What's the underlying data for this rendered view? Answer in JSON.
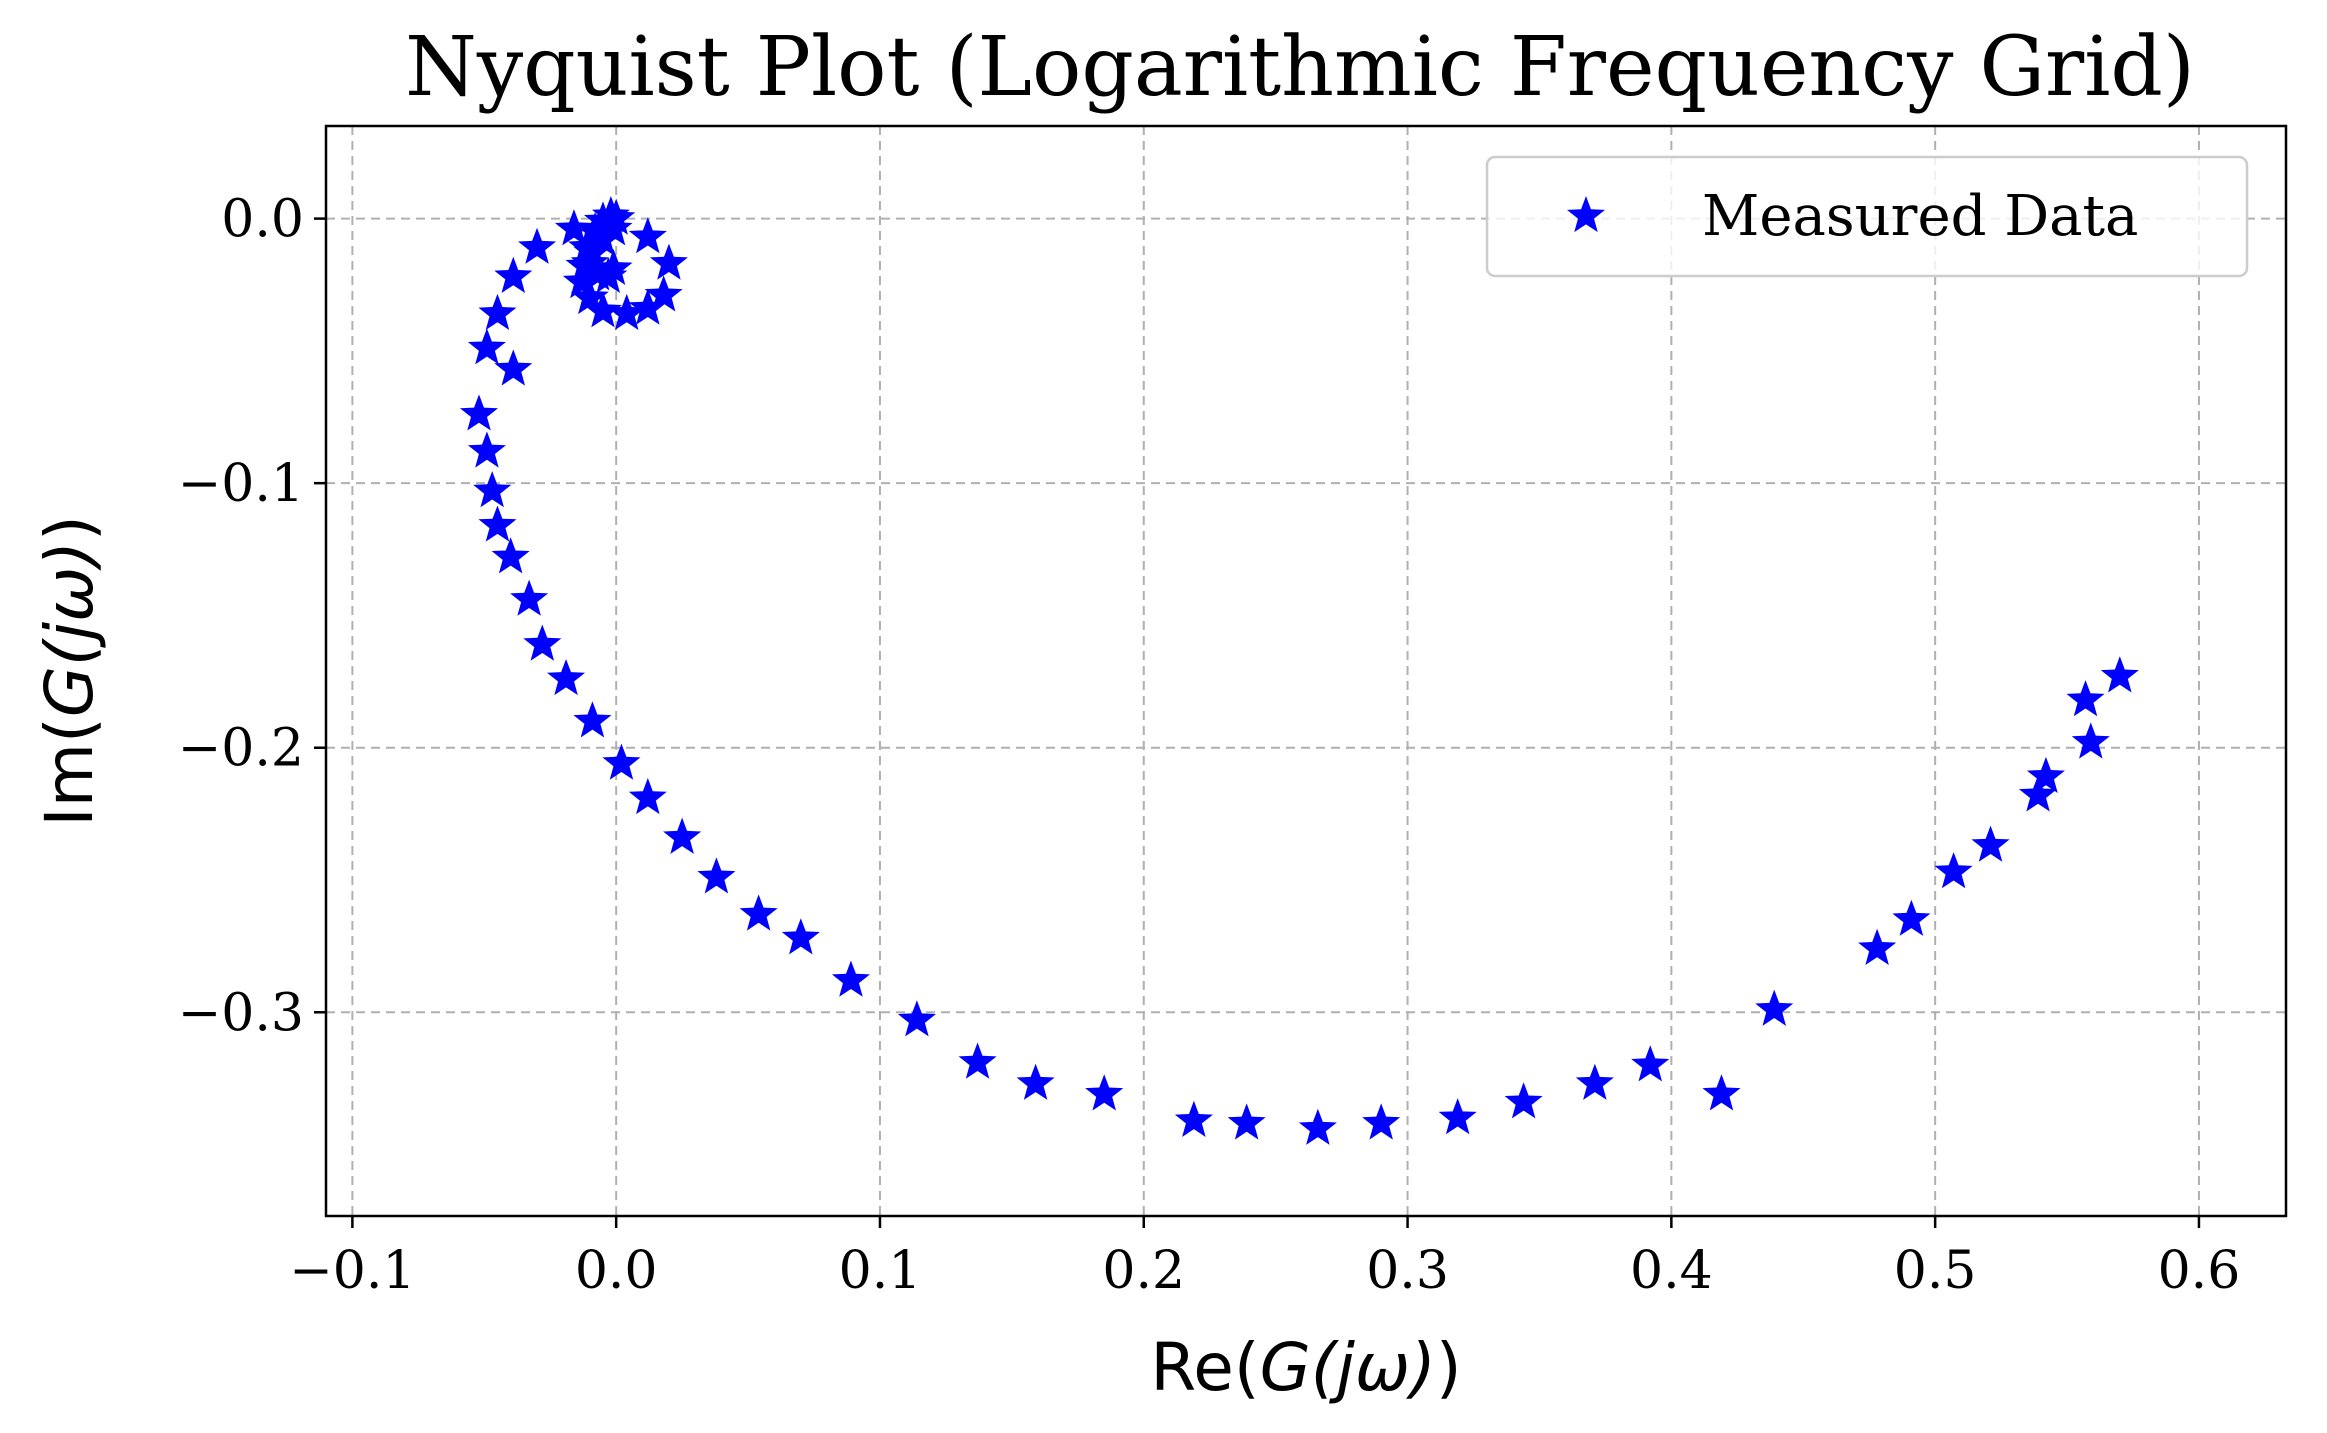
{
  "chart_data": {
    "type": "scatter",
    "title": "Nyquist Plot (Logarithmic Frequency Grid)",
    "xlabel_text": "Re(",
    "xlabel_math": "G(jω)",
    "xlabel_close": ")",
    "ylabel_text": "Im(",
    "ylabel_math": "G(jω)",
    "ylabel_close": ")",
    "xlim": [
      -0.11,
      0.633
    ],
    "ylim": [
      -0.377,
      0.035
    ],
    "xticks": [
      -0.1,
      0.0,
      0.1,
      0.2,
      0.3,
      0.4,
      0.5,
      0.6
    ],
    "xtick_labels": [
      "−0.1",
      "0.0",
      "0.1",
      "0.2",
      "0.3",
      "0.4",
      "0.5",
      "0.6"
    ],
    "yticks": [
      0.0,
      -0.1,
      -0.2,
      -0.3
    ],
    "ytick_labels": [
      "0.0",
      "−0.1",
      "−0.2",
      "−0.3"
    ],
    "grid": true,
    "legend_position": "top-right",
    "marker": "star",
    "marker_color": "#0000ff",
    "series": [
      {
        "name": "Measured Data",
        "x": [
          0.57,
          0.557,
          0.559,
          0.542,
          0.539,
          0.521,
          0.507,
          0.491,
          0.478,
          0.439,
          0.419,
          0.392,
          0.371,
          0.344,
          0.319,
          0.29,
          0.266,
          0.239,
          0.219,
          0.185,
          0.159,
          0.137,
          0.114,
          0.089,
          0.07,
          0.054,
          0.038,
          0.025,
          0.012,
          0.002,
          -0.009,
          -0.019,
          -0.028,
          -0.033,
          -0.04,
          -0.045,
          -0.047,
          -0.049,
          -0.052,
          -0.039,
          -0.049,
          -0.045,
          -0.039,
          -0.03,
          -0.016,
          0.012,
          0.02,
          0.018,
          0.012,
          0.004,
          -0.005,
          -0.01,
          -0.013,
          -0.012,
          -0.009,
          -0.005,
          -0.001,
          0.0,
          -0.002,
          -0.005,
          -0.008,
          -0.011,
          -0.01,
          -0.007,
          -0.003,
          -0.001
        ],
        "y": [
          -0.173,
          -0.182,
          -0.198,
          -0.211,
          -0.218,
          -0.237,
          -0.247,
          -0.265,
          -0.276,
          -0.299,
          -0.331,
          -0.32,
          -0.327,
          -0.334,
          -0.34,
          -0.342,
          -0.344,
          -0.342,
          -0.341,
          -0.331,
          -0.327,
          -0.319,
          -0.303,
          -0.288,
          -0.272,
          -0.263,
          -0.249,
          -0.234,
          -0.219,
          -0.206,
          -0.19,
          -0.174,
          -0.161,
          -0.144,
          -0.128,
          -0.116,
          -0.103,
          -0.088,
          -0.074,
          -0.057,
          -0.049,
          -0.036,
          -0.022,
          -0.011,
          -0.004,
          -0.007,
          -0.017,
          -0.029,
          -0.034,
          -0.036,
          -0.035,
          -0.03,
          -0.024,
          -0.018,
          -0.013,
          -0.008,
          -0.004,
          0.0,
          0.001,
          -0.001,
          -0.005,
          -0.011,
          -0.017,
          -0.021,
          -0.022,
          -0.019
        ]
      }
    ]
  }
}
